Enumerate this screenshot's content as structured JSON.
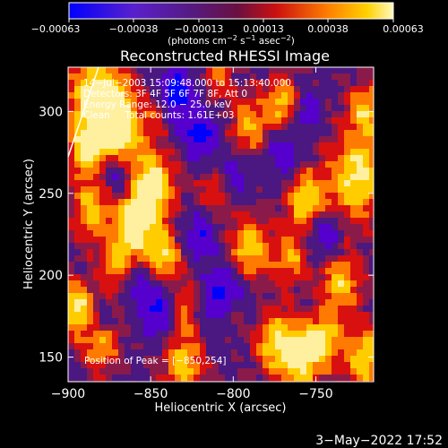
{
  "chart_data": {
    "type": "heatmap",
    "title": "Reconstructed RHESSI Image",
    "xlabel": "Heliocentric X (arcsec)",
    "ylabel": "Heliocentric Y (arcsec)",
    "xlim": [
      -900,
      -715
    ],
    "ylim": [
      135,
      327
    ],
    "xticks": [
      -900,
      -850,
      -800,
      -750
    ],
    "yticks": [
      150,
      200,
      250,
      300
    ],
    "x_tick_labels": [
      "−900",
      "−850",
      "−800",
      "−750"
    ],
    "y_tick_labels": [
      "150",
      "200",
      "250",
      "300"
    ],
    "colorbar": {
      "min": -0.00063,
      "max": 0.00063,
      "tick_labels": [
        "−0.00063",
        "−0.00038",
        "−0.00013",
        "0.00013",
        "0.00038",
        "0.00063"
      ],
      "units_label": "(photons cm",
      "units_exp1": "−2",
      "units_mid": " s",
      "units_exp2": "−1",
      "units_tail": " asec",
      "units_exp3": "−2",
      "units_close": ")"
    },
    "annotations": [
      "14−Jul−2003 15:09:48.000 to 15:13:40.000",
      "Detectors: 3F 4F 5F 6F 7F 8F, Att 0",
      "Energy Range: 12.0 − 25.0 keV",
      "Clean     Total counts: 1.61E+03"
    ],
    "peak_label": "Position of Peak = [−850,254]",
    "peak": [
      -850,
      254
    ],
    "colormap": [
      "#0000ff",
      "#5500cc",
      "#4a1880",
      "#8a1a4a",
      "#d91010",
      "#ff7a00",
      "#ffcc00",
      "#fff0a0"
    ]
  },
  "footer": {
    "date": "3−May−2022 17:52"
  }
}
